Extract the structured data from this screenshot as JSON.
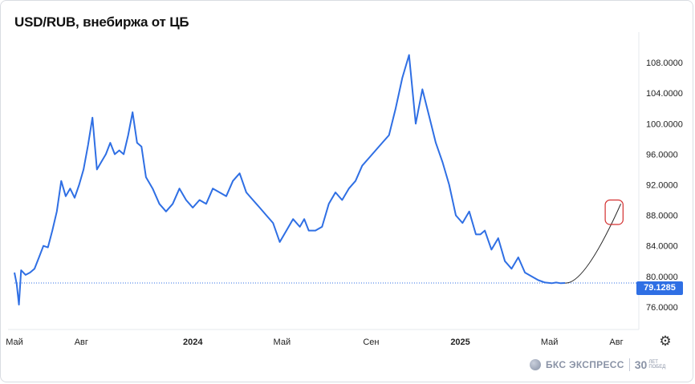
{
  "title": "USD/RUB, внебиржа от ЦБ",
  "current_price": "79.1285",
  "colors": {
    "line": "#2f6fe4",
    "badge": "#2f6fe4",
    "forecast_line": "#222222",
    "target_box": "#d32f2f",
    "grid": "#e6e8ed"
  },
  "icons": {
    "settings": "gear-icon",
    "logo": "bks-logo-icon"
  },
  "footer": {
    "brand": "БКС ЭКСПРЕСС",
    "anniversary_number": "30",
    "anniversary_text_1": "ЛЕТ",
    "anniversary_text_2": "ПОБЕД"
  },
  "chart_data": {
    "type": "line",
    "title": "USD/RUB, внебиржа от ЦБ",
    "y_axis_side": "right",
    "ylim": [
      74.2,
      112.0
    ],
    "yticks": [
      "76.0000",
      "80.0000",
      "84.0000",
      "88.0000",
      "92.0000",
      "96.0000",
      "100.0000",
      "104.0000",
      "108.0000"
    ],
    "ytick_values": [
      76,
      80,
      84,
      88,
      92,
      96,
      100,
      104,
      108
    ],
    "xlim": [
      0,
      27.0
    ],
    "xticks": [
      {
        "label": "Май",
        "m": 0,
        "bold": false
      },
      {
        "label": "Авг",
        "m": 3,
        "bold": false
      },
      {
        "label": "2024",
        "m": 8,
        "bold": true
      },
      {
        "label": "Май",
        "m": 12,
        "bold": false
      },
      {
        "label": "Сен",
        "m": 16,
        "bold": false
      },
      {
        "label": "2025",
        "m": 20,
        "bold": true
      },
      {
        "label": "Май",
        "m": 24,
        "bold": false
      },
      {
        "label": "Авг",
        "m": 27,
        "bold": false
      }
    ],
    "x_unit": "months since May 2023",
    "series": [
      {
        "x": [
          0.0,
          0.1,
          0.2,
          0.3,
          0.5,
          0.7,
          0.9,
          1.1,
          1.3,
          1.5,
          1.7,
          1.9,
          2.1,
          2.3,
          2.5,
          2.7,
          2.9,
          3.1,
          3.3,
          3.5,
          3.7,
          3.9,
          4.1,
          4.3,
          4.5,
          4.7,
          4.9,
          5.1,
          5.3,
          5.5,
          5.7,
          5.9,
          6.2,
          6.5,
          6.8,
          7.1,
          7.4,
          7.7,
          8.0,
          8.3,
          8.6,
          8.9,
          9.2,
          9.5,
          9.8,
          10.1,
          10.4,
          10.7,
          11.0,
          11.3,
          11.6,
          11.9,
          12.2,
          12.5,
          12.8,
          13.0,
          13.2,
          13.5,
          13.8,
          14.1,
          14.4,
          14.7,
          15.0,
          15.3,
          15.6,
          15.9,
          16.2,
          16.5,
          16.8,
          17.1,
          17.4,
          17.7,
          18.0,
          18.3,
          18.6,
          18.9,
          19.2,
          19.5,
          19.8,
          20.1,
          20.4,
          20.7,
          20.9,
          21.1,
          21.4,
          21.7,
          22.0,
          22.3,
          22.6,
          22.9,
          23.2,
          23.5,
          23.8,
          24.1,
          24.3,
          24.5,
          24.7
        ],
        "y": [
          80.5,
          79.0,
          76.3,
          80.8,
          80.2,
          80.5,
          81.0,
          82.5,
          84.0,
          83.8,
          86.0,
          88.5,
          92.5,
          90.5,
          91.5,
          90.3,
          92.0,
          94.0,
          97.2,
          100.8,
          94.0,
          95.0,
          96.0,
          97.5,
          96.0,
          96.5,
          96.0,
          98.5,
          101.5,
          97.5,
          97.0,
          93.0,
          91.5,
          89.5,
          88.5,
          89.5,
          91.5,
          90.0,
          89.0,
          90.0,
          89.5,
          91.5,
          91.0,
          90.5,
          92.5,
          93.5,
          91.0,
          90.0,
          89.0,
          88.0,
          87.0,
          84.5,
          86.0,
          87.5,
          86.5,
          87.5,
          86.0,
          86.0,
          86.5,
          89.5,
          91.0,
          90.0,
          91.5,
          92.5,
          94.5,
          95.5,
          96.5,
          97.5,
          98.5,
          102.0,
          106.0,
          109.0,
          100.0,
          104.5,
          101.0,
          97.5,
          95.0,
          92.0,
          88.0,
          87.0,
          88.5,
          85.5,
          85.5,
          86.0,
          83.5,
          85.0,
          82.0,
          81.0,
          82.5,
          80.5,
          80.0,
          79.5,
          79.2,
          79.1,
          79.2,
          79.1,
          79.13
        ]
      }
    ],
    "forecast": {
      "description_color": "#222222",
      "from": {
        "x": 24.7,
        "y": 79.13
      },
      "to": {
        "x": 27.2,
        "y": 89.5
      }
    },
    "target_zone": {
      "x0": 26.5,
      "x1": 27.3,
      "y0": 86.8,
      "y1": 90.0
    },
    "current_level": 79.1285,
    "grid": false,
    "legend": "none"
  }
}
